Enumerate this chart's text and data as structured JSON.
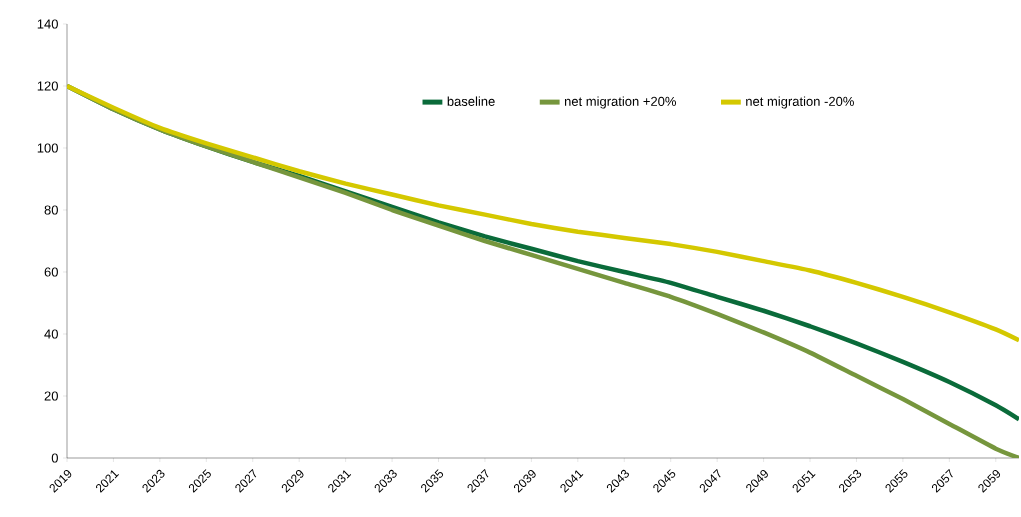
{
  "chart_data": {
    "type": "line",
    "x": [
      2019,
      2021,
      2023,
      2025,
      2027,
      2029,
      2031,
      2033,
      2035,
      2037,
      2039,
      2041,
      2043,
      2045,
      2047,
      2049,
      2051,
      2053,
      2055,
      2057,
      2059,
      2060
    ],
    "series": [
      {
        "name": "baseline",
        "color": "#0a6b3a",
        "values": [
          120,
          112.5,
          106,
          100.5,
          95.5,
          91,
          86,
          81,
          76,
          71.5,
          67.5,
          63.5,
          60,
          56.5,
          52,
          47.5,
          42.5,
          37,
          31,
          24.5,
          17,
          12.5
        ]
      },
      {
        "name": "net migration +20%",
        "color": "#76963d",
        "values": [
          120,
          112.5,
          106,
          100.5,
          95.5,
          90.5,
          85.5,
          80,
          75,
          70,
          65.5,
          61,
          56.5,
          52,
          46.5,
          40.5,
          34,
          26.5,
          19,
          11,
          3,
          0
        ]
      },
      {
        "name": "net migration -20%",
        "color": "#d4c800",
        "values": [
          120,
          113,
          106.5,
          101.5,
          97,
          92.5,
          88.5,
          85,
          81.5,
          78.5,
          75.5,
          73,
          71,
          69,
          66.5,
          63.5,
          60.5,
          56.5,
          52,
          47,
          41.5,
          38
        ]
      }
    ],
    "xlim": [
      2019,
      2060
    ],
    "ylim": [
      0,
      140
    ],
    "xticks": [
      2019,
      2021,
      2023,
      2025,
      2027,
      2029,
      2031,
      2033,
      2035,
      2037,
      2039,
      2041,
      2043,
      2045,
      2047,
      2049,
      2051,
      2053,
      2055,
      2057,
      2059
    ],
    "yticks": [
      0,
      20,
      40,
      60,
      80,
      100,
      120,
      140
    ],
    "grid": false,
    "legend": "top",
    "marker": "none",
    "line_style": "solid"
  }
}
